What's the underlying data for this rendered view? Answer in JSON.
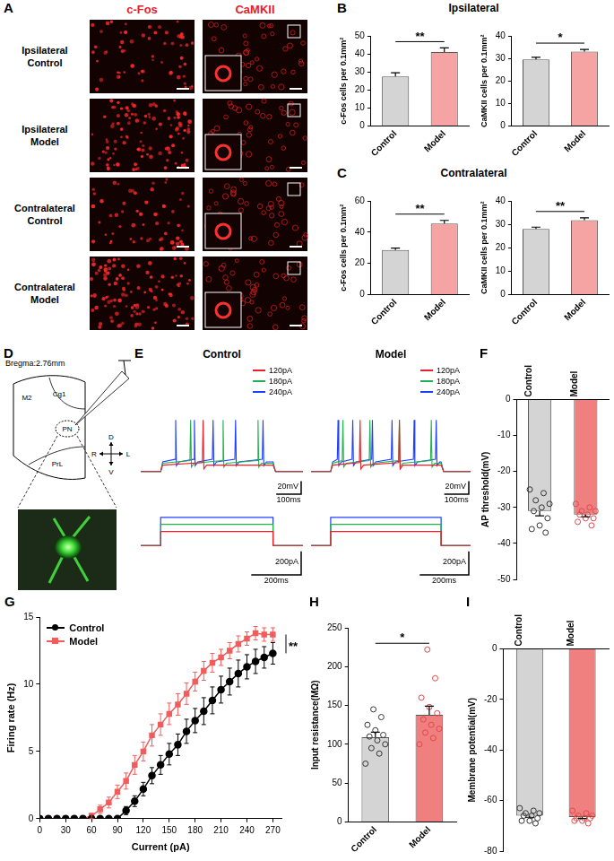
{
  "images": {
    "panel": "A",
    "columns": [
      "c-Fos",
      "CaMKII"
    ],
    "rows": [
      [
        "Ipsilateral",
        "Control"
      ],
      [
        "Ipsilateral",
        "Model"
      ],
      [
        "Contralateral",
        "Control"
      ],
      [
        "Contralateral",
        "Model"
      ]
    ]
  },
  "schematic": {
    "panel": "D",
    "bregma": "Bregma:2.76mm",
    "regions": [
      "M2",
      "Cg1",
      "PN",
      "PrL"
    ],
    "directions": [
      "D",
      "V",
      "R",
      "L"
    ]
  },
  "chart_data": [
    {
      "panel": "B",
      "title": "Ipsilateral",
      "type": "bar",
      "categories": [
        "Control",
        "Model"
      ],
      "values": [
        27.5,
        41
      ],
      "errors": [
        2,
        2.3
      ],
      "colors": [
        "#d4d4d4",
        "#f5a3a3"
      ],
      "y_label": "c-Fos cells per 0.1mm²",
      "ylim": [
        0,
        50
      ],
      "yticks": [
        0,
        10,
        20,
        30,
        40,
        50
      ],
      "significance": "**"
    },
    {
      "panel": "B",
      "type": "bar",
      "categories": [
        "Control",
        "Model"
      ],
      "values": [
        29.5,
        33
      ],
      "errors": [
        1,
        1
      ],
      "colors": [
        "#d4d4d4",
        "#f5a3a3"
      ],
      "y_label": "CaMKII cells per 0.1mm²",
      "ylim": [
        0,
        40
      ],
      "yticks": [
        0,
        10,
        20,
        30,
        40
      ],
      "significance": "*"
    },
    {
      "panel": "C",
      "title": "Contralateral",
      "type": "bar",
      "categories": [
        "Control",
        "Model"
      ],
      "values": [
        28.5,
        45.5
      ],
      "errors": [
        1.3,
        2
      ],
      "colors": [
        "#d4d4d4",
        "#f5a3a3"
      ],
      "y_label": "c-Fos cells per 0.1mm²",
      "ylim": [
        0,
        60
      ],
      "yticks": [
        0,
        20,
        40,
        60
      ],
      "significance": "**"
    },
    {
      "panel": "C",
      "type": "bar",
      "categories": [
        "Control",
        "Model"
      ],
      "values": [
        28,
        31.8
      ],
      "errors": [
        0.8,
        1
      ],
      "colors": [
        "#d4d4d4",
        "#f5a3a3"
      ],
      "y_label": "CaMKII cells per 0.1mm²",
      "ylim": [
        0,
        40
      ],
      "yticks": [
        0,
        10,
        20,
        30,
        40
      ],
      "significance": "**"
    },
    {
      "panel": "E",
      "type": "line",
      "tick_labels": false,
      "legend": "top-right",
      "xlim": [
        0,
        650
      ],
      "ylim": [
        -100,
        100
      ],
      "current_ylim": [
        -250,
        300
      ],
      "step_ms": [
        80,
        530
      ],
      "rest_mV": -65,
      "peak_mV": 15,
      "scale_bars": {
        "voltage": {
          "label": "20mV",
          "value": 20
        },
        "time": {
          "label": "100ms",
          "value": 100
        },
        "current": {
          "label": "200pA",
          "value": 200
        },
        "current_time": {
          "label": "200ms",
          "value": 200
        }
      },
      "groups": [
        {
          "title": "Control",
          "series": [
            {
              "name": "120pA",
              "color": "#e8202a",
              "current": 120,
              "plateau_mV": -55,
              "spike_times": [
                250
              ]
            },
            {
              "name": "180pA",
              "color": "#22b14c",
              "current": 180,
              "plateau_mV": -52,
              "spike_times": [
                200,
                330,
                470
              ]
            },
            {
              "name": "240pA",
              "color": "#1f3fff",
              "current": 240,
              "plateau_mV": -50,
              "spike_times": [
                140,
                215,
                290,
                380,
                490
              ]
            }
          ]
        },
        {
          "title": "Model",
          "series": [
            {
              "name": "120pA",
              "color": "#e8202a",
              "current": 120,
              "plateau_mV": -55,
              "spike_times": [
                200,
                360
              ]
            },
            {
              "name": "180pA",
              "color": "#22b14c",
              "current": 180,
              "plateau_mV": -52,
              "spike_times": [
                130,
                240,
                360,
                490
              ]
            },
            {
              "name": "240pA",
              "color": "#1f3fff",
              "current": 240,
              "plateau_mV": -50,
              "spike_times": [
                110,
                170,
                250,
                330,
                420,
                510
              ]
            }
          ]
        }
      ]
    },
    {
      "panel": "F",
      "type": "bar",
      "categories": [
        "Control",
        "Model"
      ],
      "values": [
        -31,
        -32
      ],
      "errors": [
        1.3,
        0.6
      ],
      "points": [
        [
          -25,
          -26,
          -28,
          -29,
          -30,
          -31,
          -33,
          -35,
          -36,
          -37
        ],
        [
          -29,
          -30,
          -31,
          -31,
          -32,
          -32,
          -33,
          -33,
          -34,
          -35
        ]
      ],
      "colors": [
        "#d4d4d4",
        "#f08080"
      ],
      "y_label": "AP threshold(mV)",
      "ylim": [
        -50,
        0
      ],
      "yticks": [
        -50,
        -40,
        -30,
        -20,
        -10,
        0
      ]
    },
    {
      "panel": "G",
      "type": "line",
      "x_label": "Current (pA)",
      "y_label": "Firing rate (Hz)",
      "legend": "top-left",
      "significance": "**",
      "xlim": [
        0,
        280
      ],
      "xticks": [
        0,
        30,
        60,
        90,
        120,
        150,
        180,
        210,
        240,
        270
      ],
      "ylim": [
        0,
        15
      ],
      "yticks": [
        0,
        5,
        10,
        15
      ],
      "x": [
        0,
        10,
        20,
        30,
        40,
        50,
        60,
        70,
        80,
        90,
        100,
        110,
        120,
        130,
        140,
        150,
        160,
        170,
        180,
        190,
        200,
        210,
        220,
        230,
        240,
        250,
        260,
        270
      ],
      "series": [
        {
          "name": "Control",
          "color": "#000000",
          "marker": "circle",
          "values": [
            0,
            0,
            0,
            0,
            0,
            0,
            0,
            0,
            0,
            0,
            0.6,
            1.3,
            2.2,
            3.2,
            4.0,
            4.8,
            5.5,
            6.5,
            7.3,
            8.0,
            8.8,
            9.6,
            10.2,
            10.8,
            11.3,
            11.7,
            12.0,
            12.3
          ],
          "errors": [
            0,
            0,
            0,
            0,
            0,
            0,
            0,
            0,
            0,
            0,
            0.3,
            0.4,
            0.5,
            0.6,
            0.7,
            0.8,
            0.8,
            0.9,
            0.9,
            1.0,
            1.0,
            1.0,
            1.0,
            1.0,
            0.9,
            0.9,
            0.8,
            0.8
          ]
        },
        {
          "name": "Model",
          "color": "#f25c5c",
          "marker": "square",
          "values": [
            0,
            0,
            0,
            0,
            0,
            0,
            0.2,
            0.7,
            1.2,
            2.0,
            2.8,
            4.0,
            5.0,
            6.2,
            7.0,
            7.8,
            8.5,
            9.3,
            10.2,
            11.0,
            11.6,
            12.0,
            12.5,
            13.0,
            13.4,
            13.8,
            13.7,
            13.7
          ],
          "errors": [
            0,
            0,
            0,
            0,
            0,
            0,
            0.2,
            0.3,
            0.4,
            0.5,
            0.6,
            0.7,
            0.7,
            0.8,
            0.8,
            0.8,
            0.8,
            0.8,
            0.7,
            0.7,
            0.7,
            0.6,
            0.6,
            0.6,
            0.5,
            0.5,
            0.5,
            0.5
          ]
        }
      ]
    },
    {
      "panel": "H",
      "type": "bar",
      "categories": [
        "Control",
        "Model"
      ],
      "values": [
        109,
        138
      ],
      "errors": [
        6.5,
        11
      ],
      "points": [
        [
          75,
          88,
          95,
          100,
          105,
          110,
          112,
          118,
          125,
          135,
          145
        ],
        [
          100,
          108,
          115,
          120,
          125,
          132,
          140,
          148,
          160,
          185,
          222
        ]
      ],
      "colors": [
        "#d4d4d4",
        "#f08080"
      ],
      "y_label": "Input resistance(MΩ)",
      "ylim": [
        0,
        250
      ],
      "yticks": [
        0,
        50,
        100,
        150,
        200,
        250
      ],
      "significance": "*"
    },
    {
      "panel": "I",
      "type": "bar",
      "categories": [
        "Control",
        "Model"
      ],
      "values": [
        -66,
        -66.5
      ],
      "errors": [
        0.6,
        0.6
      ],
      "points": [
        [
          -63,
          -64,
          -65,
          -65,
          -66,
          -66,
          -67,
          -68,
          -68,
          -69
        ],
        [
          -64,
          -65,
          -66,
          -66,
          -67,
          -67,
          -67,
          -68,
          -68,
          -69
        ]
      ],
      "colors": [
        "#d4d4d4",
        "#f08080"
      ],
      "y_label": "Membrane potential(mV)",
      "ylim": [
        -80,
        0
      ],
      "yticks": [
        -80,
        -60,
        -40,
        -20,
        0
      ]
    }
  ]
}
